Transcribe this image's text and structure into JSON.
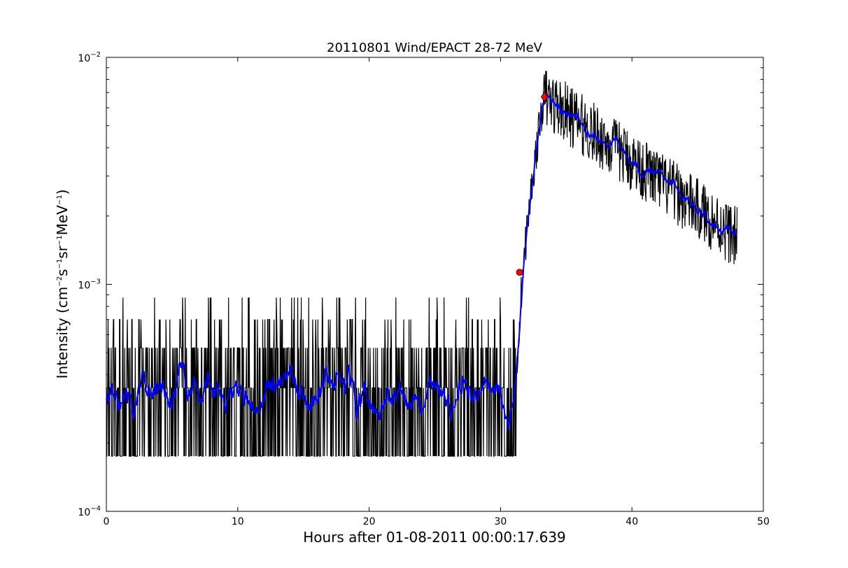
{
  "chart_data": {
    "type": "line",
    "title": "20110801 Wind/EPACT 28-72 MeV",
    "xlabel": "Hours after 01-08-2011 00:00:17.639",
    "ylabel_prefix": "Intensity (cm",
    "ylabel_exp1": "−2",
    "ylabel_mid1": "s",
    "ylabel_exp2": "−1",
    "ylabel_mid2": "sr",
    "ylabel_exp3": "−1",
    "ylabel_mid3": "MeV",
    "ylabel_exp4": "−1",
    "ylabel_suffix": ")",
    "xlim": [
      0,
      50
    ],
    "ylim": [
      0.0001,
      0.01
    ],
    "yscale": "log",
    "grid": false,
    "x_ticks": [
      {
        "value": 0,
        "label": "0"
      },
      {
        "value": 10,
        "label": "10"
      },
      {
        "value": 20,
        "label": "20"
      },
      {
        "value": 30,
        "label": "30"
      },
      {
        "value": 40,
        "label": "40"
      },
      {
        "value": 50,
        "label": "50"
      }
    ],
    "y_ticks": [
      {
        "value": 0.0001,
        "base": "10",
        "exp": "−4"
      },
      {
        "value": 0.001,
        "base": "10",
        "exp": "−3"
      },
      {
        "value": 0.01,
        "base": "10",
        "exp": "−2"
      }
    ],
    "series": [
      {
        "color": "#000000",
        "style": "raw",
        "x_start": 0,
        "x_end": 48,
        "baseline_levels": [
          0.000175,
          0.00035,
          0.000525,
          0.0007,
          0.000875
        ],
        "onset_hours": 31.2,
        "peak_hours": 33.3,
        "peak_value": 0.0067,
        "end_value": 0.0016
      },
      {
        "color": "#0000ff",
        "style": "smoothed",
        "x_start": 0,
        "x_end": 48,
        "background_value": 0.00038,
        "onset_hours": 31.2,
        "peak_hours": 33.3,
        "peak_value": 0.0063,
        "end_value": 0.0016
      }
    ],
    "markers": [
      {
        "x": 31.45,
        "y": 0.00113,
        "shape": "circle",
        "color": "#ff0000"
      },
      {
        "x": 33.35,
        "y": 0.0067,
        "shape": "diamond",
        "color": "#ff0000"
      }
    ]
  }
}
